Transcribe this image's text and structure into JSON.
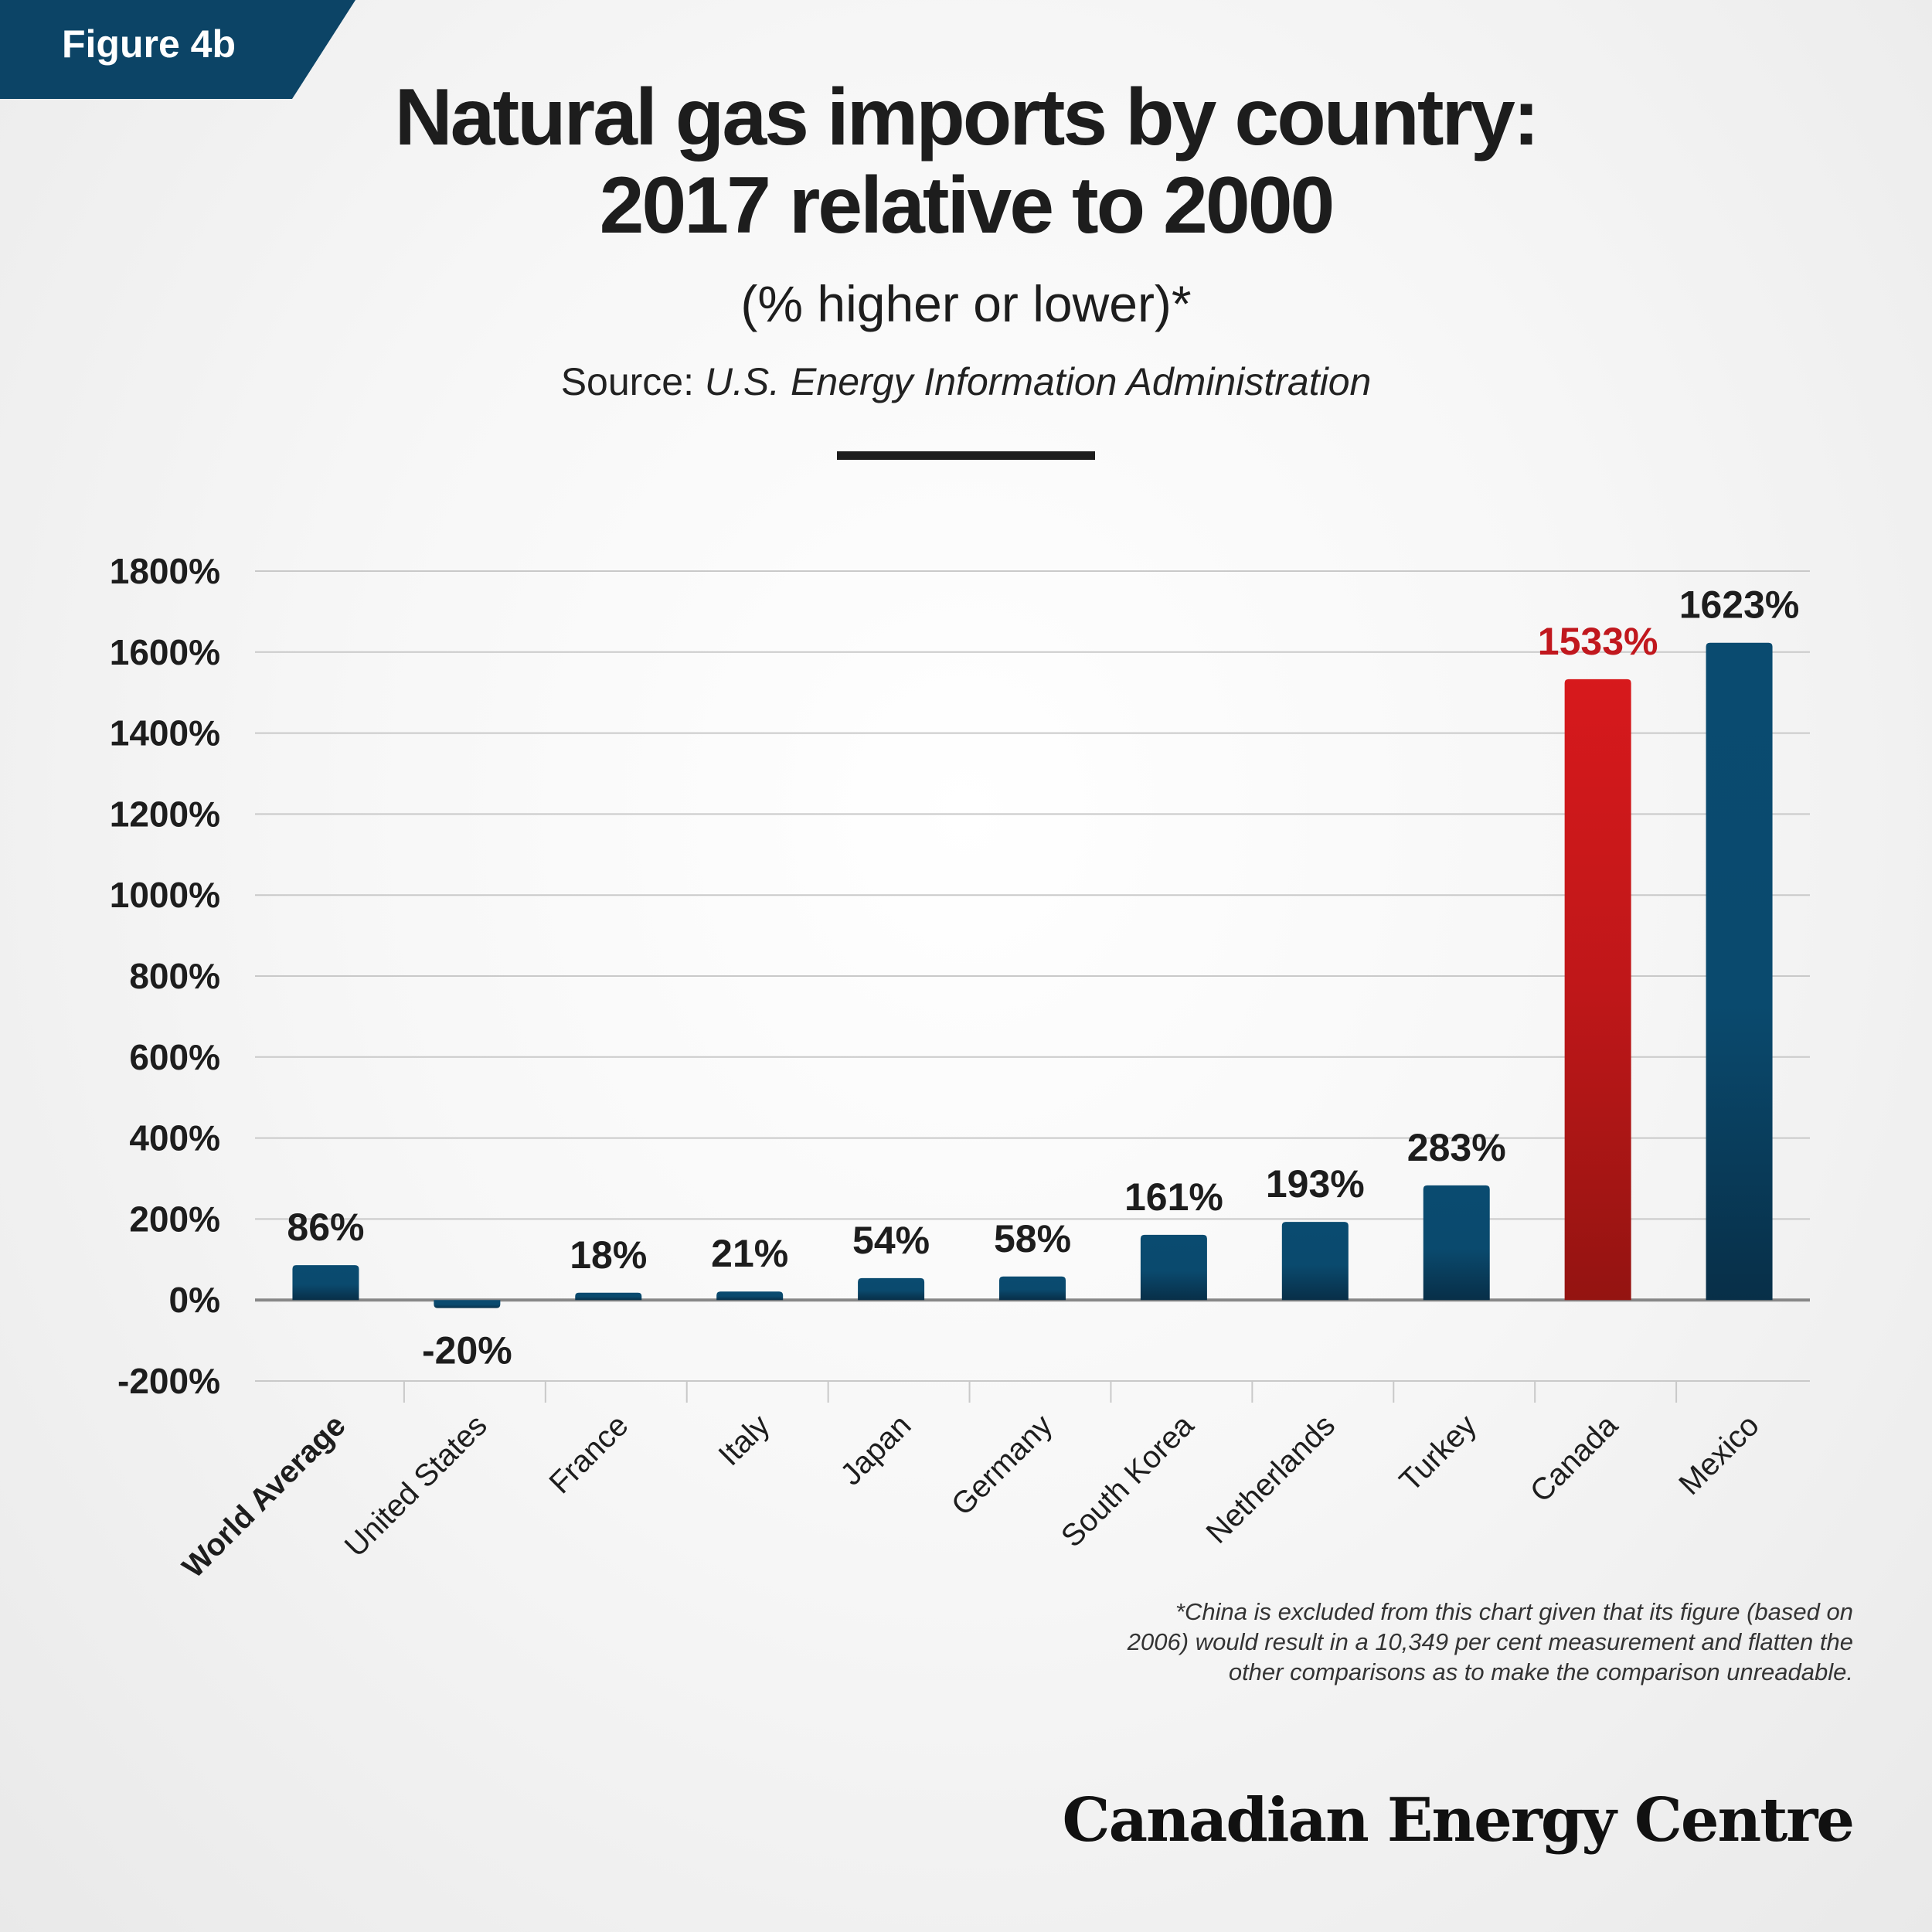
{
  "header": {
    "badge": "Figure 4b",
    "title_line_1": "Natural gas imports by country:",
    "title_line_2": "2017 relative to 2000",
    "subtitle": "(% higher or lower)*",
    "source_prefix": "Source: ",
    "source_name": "U.S. Energy Information Administration"
  },
  "colors": {
    "badge": "#0c4466",
    "bar_blue": "#0a4b70",
    "bar_blue_dark": "#082f48",
    "bar_red": "#d7191c",
    "bar_red_dark": "#941411",
    "highlight_label": "#c1181e",
    "grid": "#c9c9c9",
    "axis": "#888888"
  },
  "chart_data": {
    "type": "bar",
    "categories": [
      "World Average",
      "United States",
      "France",
      "Italy",
      "Japan",
      "Germany",
      "South Korea",
      "Netherlands",
      "Turkey",
      "Canada",
      "Mexico"
    ],
    "values": [
      86,
      -20,
      18,
      21,
      54,
      58,
      161,
      193,
      283,
      1533,
      1623
    ],
    "data_labels": [
      "86%",
      "-20%",
      "18%",
      "21%",
      "54%",
      "58%",
      "161%",
      "193%",
      "283%",
      "1533%",
      "1623%"
    ],
    "highlight": "Canada",
    "bold_category": "World Average",
    "ylim": [
      -200,
      1800
    ],
    "yticks": [
      1800,
      1600,
      1400,
      1200,
      1000,
      800,
      600,
      400,
      200,
      0,
      -200
    ],
    "ytick_labels": [
      "1800%",
      "1600%",
      "1400%",
      "1200%",
      "1000%",
      "800%",
      "600%",
      "400%",
      "200%",
      "0%",
      "-200%"
    ],
    "grid": true,
    "legend": "none"
  },
  "footnote": {
    "line_1": "*China is excluded from this chart given that its figure (based on",
    "line_2": "2006) would result in a 10,349 per cent measurement and flatten the",
    "line_3": "other comparisons as to make the comparison unreadable."
  },
  "brand": "Canadian Energy Centre"
}
